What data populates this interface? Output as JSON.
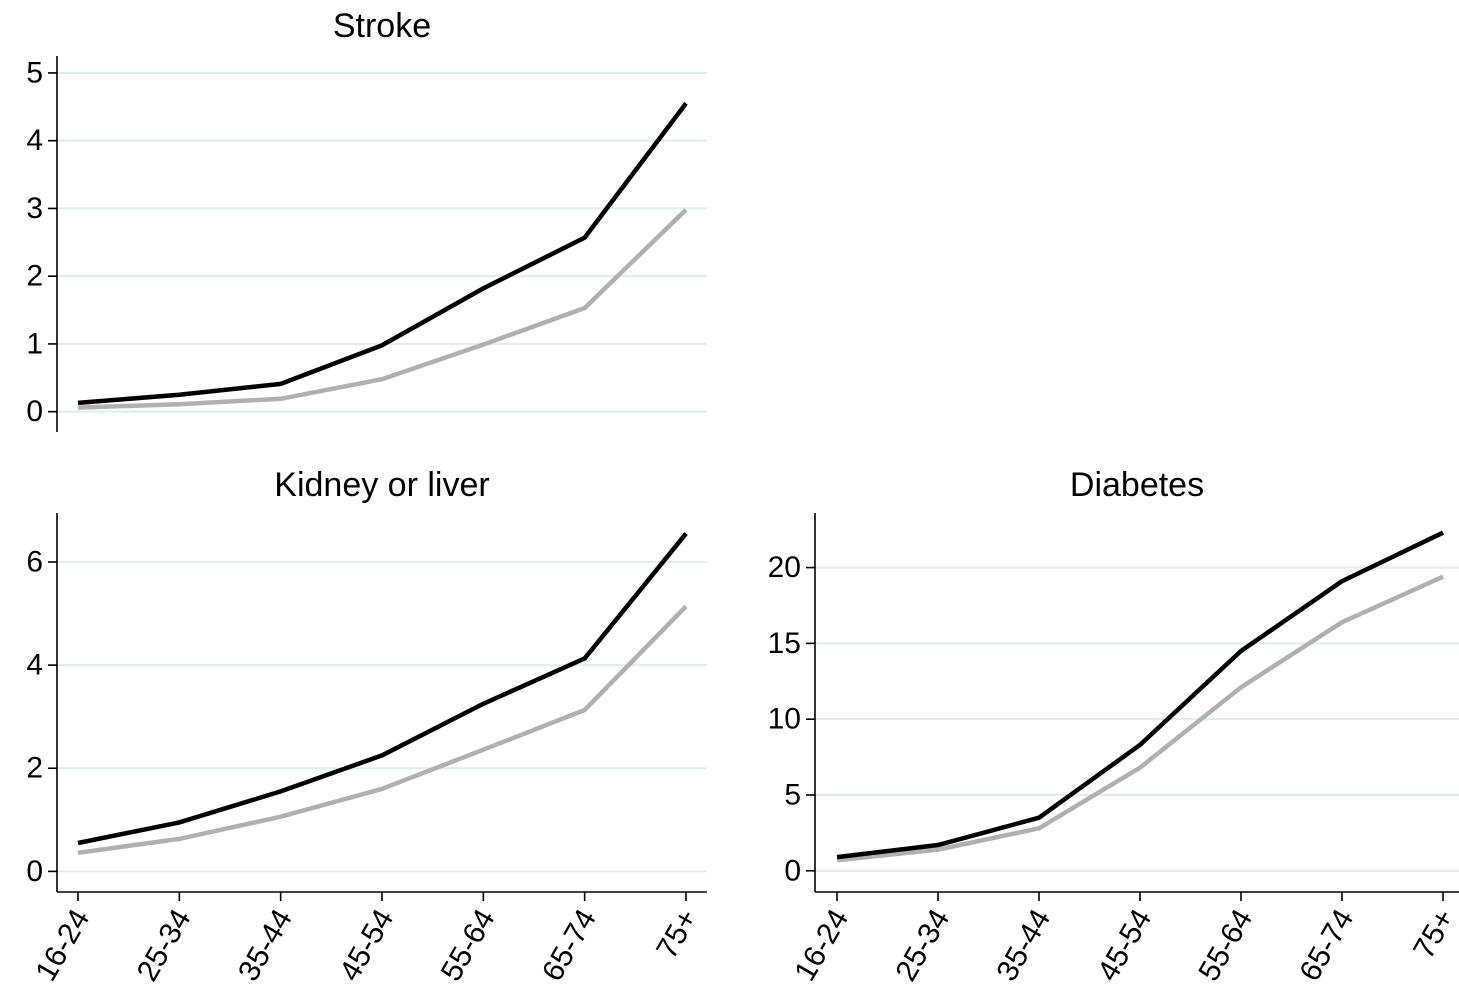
{
  "chart_data": [
    {
      "type": "line",
      "title": "Stroke",
      "categories": [
        "16-24",
        "25-34",
        "35-44",
        "45-54",
        "55-64",
        "65-74",
        "75+"
      ],
      "show_x_tick_labels": false,
      "yticks": [
        0,
        1,
        2,
        3,
        4,
        5
      ],
      "ylim": [
        -0.3,
        5.25
      ],
      "grid": true,
      "series": [
        {
          "color": "#000000",
          "values": [
            0.13,
            0.25,
            0.41,
            0.98,
            1.82,
            2.57,
            4.55
          ]
        },
        {
          "color": "#b0b0b0",
          "values": [
            0.06,
            0.11,
            0.19,
            0.48,
            0.99,
            1.53,
            2.98
          ]
        }
      ]
    },
    {
      "type": "line",
      "title": "Kidney or liver",
      "categories": [
        "16-24",
        "25-34",
        "35-44",
        "45-54",
        "55-64",
        "65-74",
        "75+"
      ],
      "show_x_tick_labels": true,
      "yticks": [
        0,
        2,
        4,
        6
      ],
      "ylim": [
        -0.4,
        6.95
      ],
      "grid": true,
      "series": [
        {
          "color": "#000000",
          "values": [
            0.55,
            0.95,
            1.55,
            2.25,
            3.25,
            4.13,
            6.55
          ]
        },
        {
          "color": "#b0b0b0",
          "values": [
            0.36,
            0.63,
            1.06,
            1.6,
            2.36,
            3.13,
            5.14
          ]
        }
      ]
    },
    {
      "type": "line",
      "title": "Diabetes",
      "categories": [
        "16-24",
        "25-34",
        "35-44",
        "45-54",
        "55-64",
        "65-74",
        "75+"
      ],
      "show_x_tick_labels": true,
      "yticks": [
        0,
        5,
        10,
        15,
        20
      ],
      "ylim": [
        -1.4,
        23.6
      ],
      "grid": true,
      "series": [
        {
          "color": "#000000",
          "values": [
            0.9,
            1.7,
            3.5,
            8.3,
            14.5,
            19.1,
            22.3
          ]
        },
        {
          "color": "#b0b0b0",
          "values": [
            0.7,
            1.4,
            2.8,
            6.8,
            12.1,
            16.4,
            19.4
          ]
        }
      ]
    }
  ]
}
